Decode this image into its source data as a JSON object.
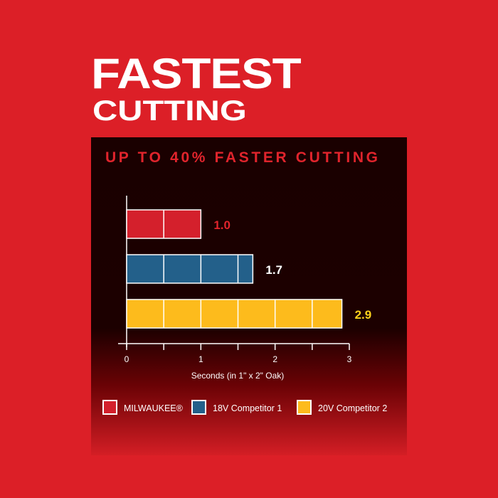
{
  "headline": {
    "line1": "FASTEST",
    "line2": "CUTTING"
  },
  "chart_data": {
    "type": "bar",
    "orientation": "horizontal",
    "title": "UP TO 40% FASTER CUTTING",
    "xlabel": "Seconds (in 1\" x 2\" Oak)",
    "xlim": [
      0,
      3
    ],
    "xticks": [
      "0",
      "1",
      "2",
      "3"
    ],
    "grid": false,
    "legend_placement": "bottom",
    "series": [
      {
        "name": "MILWAUKEE®",
        "value": 1.0,
        "label": "1.0",
        "color": "#d4202c",
        "label_color": "#e0242c"
      },
      {
        "name": "18V Competitor 1",
        "value": 1.7,
        "label": "1.7",
        "color": "#23608a",
        "label_color": "#ffffff"
      },
      {
        "name": "20V Competitor 2",
        "value": 2.9,
        "label": "2.9",
        "color": "#fdbb1c",
        "label_color": "#fdd21c"
      }
    ]
  },
  "colors": {
    "background": "#dc1f27",
    "title": "#e0242c"
  }
}
